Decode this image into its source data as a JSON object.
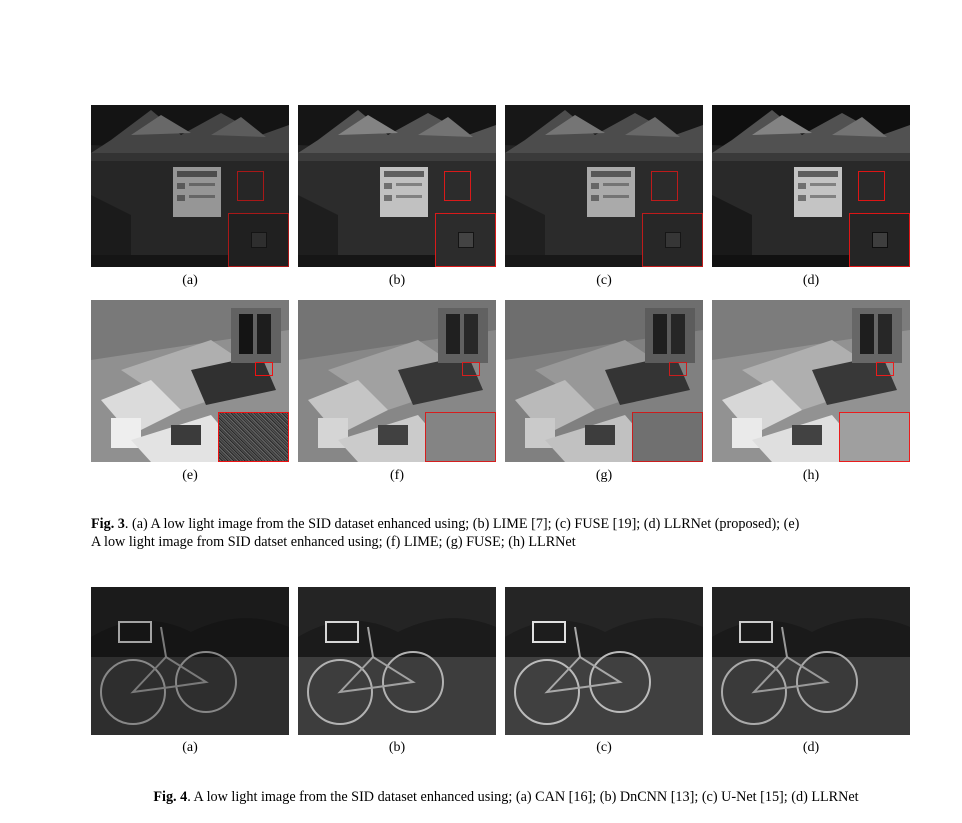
{
  "fig3": {
    "row1": [
      "(a)",
      "(b)",
      "(c)",
      "(d)"
    ],
    "row2": [
      "(e)",
      "(f)",
      "(g)",
      "(h)"
    ],
    "caption_label": "Fig. 3",
    "caption_text_1": ". (a) A low light image from the SID dataset enhanced using; (b) LIME [7]; (c) FUSE [19]; (d) LLRNet (proposed); (e)",
    "caption_text_2": "A low light image from SID datset enhanced using; (f) LIME; (g) FUSE; (h) LLRNet"
  },
  "fig4": {
    "labels": [
      "(a)",
      "(b)",
      "(c)",
      "(d)"
    ],
    "caption_label": "Fig. 4",
    "caption_text": ". A low light image from the SID dataset enhanced using; (a) CAN [16]; (b) DnCNN [13]; (c) U-Net [15]; (d) LLRNet"
  },
  "colors": {
    "zoom_box": "#e02020"
  }
}
